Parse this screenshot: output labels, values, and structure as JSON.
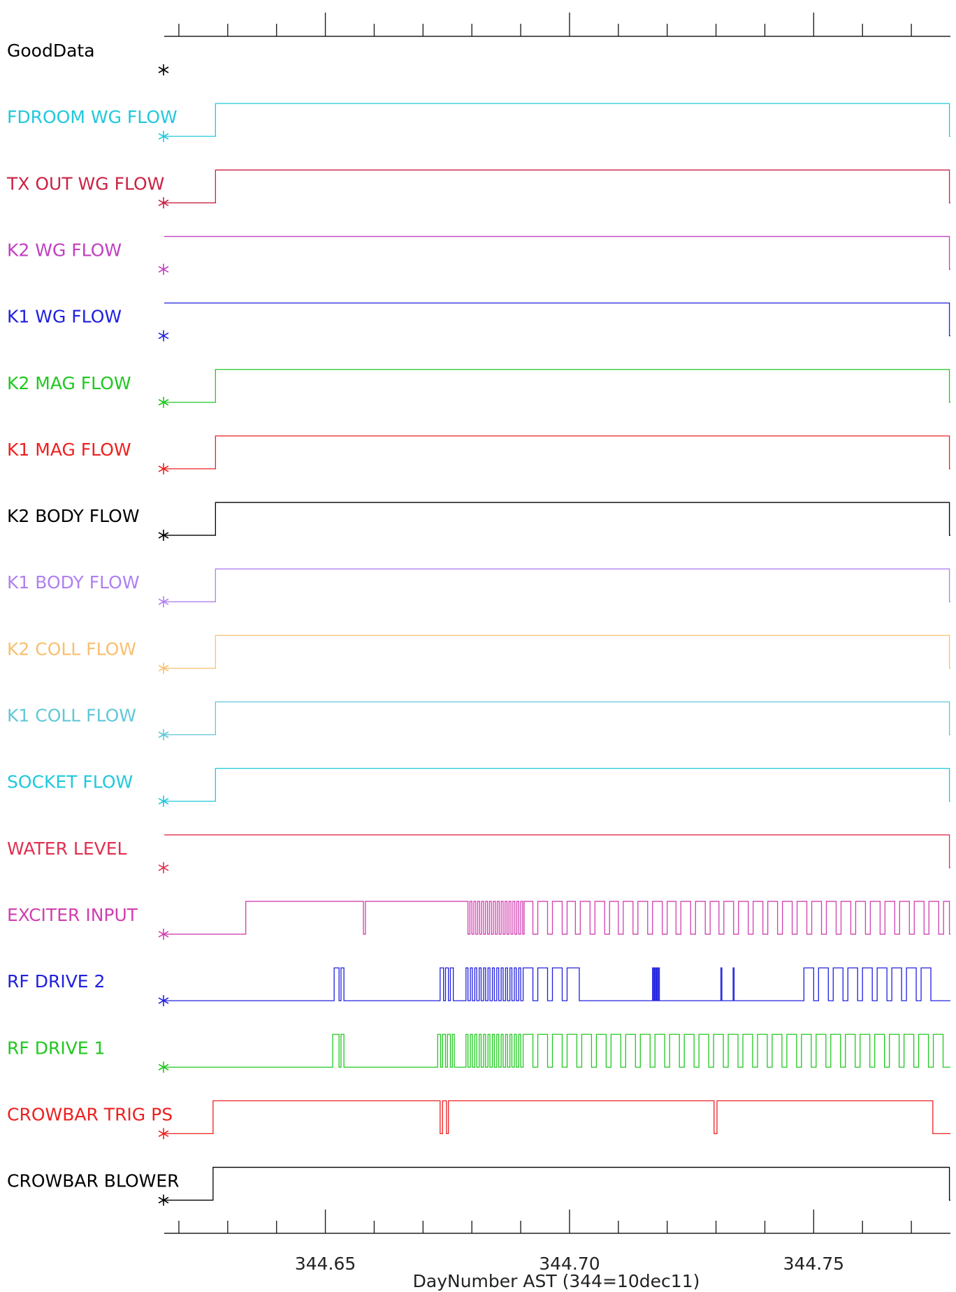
{
  "chart_data": {
    "type": "line",
    "subtype": "digital-status-traces",
    "xlabel": "DayNumber AST (344=10dec11)",
    "xlim": [
      344.617,
      344.778
    ],
    "x_major_ticks": [
      "344.65",
      "344.70",
      "344.75"
    ],
    "x_major_values": [
      344.65,
      344.7,
      344.75
    ],
    "x_minor_step": 0.01,
    "series": [
      {
        "name": "GoodData",
        "color": "#000000",
        "segments": []
      },
      {
        "name": "FDROOM WG FLOW",
        "color": "#22c8dc",
        "segments": [
          [
            344.6275,
            344.7778
          ]
        ]
      },
      {
        "name": "TX OUT WG FLOW",
        "color": "#cc2244",
        "segments": [
          [
            344.6275,
            344.7778
          ]
        ]
      },
      {
        "name": "K2 WG FLOW",
        "color": "#c040c0",
        "segments": [
          [
            344.617,
            344.7778
          ]
        ]
      },
      {
        "name": "K1 WG FLOW",
        "color": "#2020e0",
        "segments": [
          [
            344.617,
            344.7778
          ]
        ]
      },
      {
        "name": "K2 MAG FLOW",
        "color": "#20c820",
        "segments": [
          [
            344.6275,
            344.7778
          ]
        ]
      },
      {
        "name": "K1 MAG FLOW",
        "color": "#ee2020",
        "segments": [
          [
            344.6275,
            344.7778
          ]
        ]
      },
      {
        "name": "K2 BODY FLOW",
        "color": "#000000",
        "segments": [
          [
            344.6275,
            344.7778
          ]
        ]
      },
      {
        "name": "K1 BODY FLOW",
        "color": "#b080f0",
        "segments": [
          [
            344.6275,
            344.7778
          ]
        ]
      },
      {
        "name": "K2 COLL FLOW",
        "color": "#f8c070",
        "segments": [
          [
            344.6275,
            344.7778
          ]
        ]
      },
      {
        "name": "K1 COLL FLOW",
        "color": "#60c8d8",
        "segments": [
          [
            344.6275,
            344.7778
          ]
        ]
      },
      {
        "name": "SOCKET FLOW",
        "color": "#20c8dc",
        "segments": [
          [
            344.6275,
            344.7778
          ]
        ]
      },
      {
        "name": "WATER LEVEL",
        "color": "#e03050",
        "segments": [
          [
            344.617,
            344.7778
          ]
        ]
      },
      {
        "name": "EXCITER INPUT",
        "color": "#d040b0",
        "segments": [
          [
            344.6337,
            344.6578
          ],
          [
            344.6582,
            344.6792
          ],
          [
            344.6796,
            344.68
          ],
          [
            344.6804,
            344.6808
          ],
          [
            344.6812,
            344.6816
          ],
          [
            344.682,
            344.6824
          ],
          [
            344.6828,
            344.6832
          ],
          [
            344.6836,
            344.684
          ],
          [
            344.6844,
            344.6848
          ],
          [
            344.6852,
            344.6856
          ],
          [
            344.686,
            344.6864
          ],
          [
            344.6868,
            344.6872
          ],
          [
            344.6876,
            344.688
          ],
          [
            344.6884,
            344.6888
          ],
          [
            344.6892,
            344.6896
          ],
          [
            344.69,
            344.6904
          ],
          [
            344.6907,
            344.6925
          ],
          [
            344.6935,
            344.6955
          ],
          [
            344.6965,
            344.6985
          ],
          [
            344.6995,
            344.7012
          ],
          [
            344.7022,
            344.7042
          ],
          [
            344.7052,
            344.7072
          ],
          [
            344.7082,
            344.71
          ],
          [
            344.711,
            344.713
          ],
          [
            344.714,
            344.716
          ],
          [
            344.717,
            344.719
          ],
          [
            344.72,
            344.7218
          ],
          [
            344.7228,
            344.7248
          ],
          [
            344.7258,
            344.7278
          ],
          [
            344.7288,
            344.7306
          ],
          [
            344.7316,
            344.7336
          ],
          [
            344.7346,
            344.7366
          ],
          [
            344.7376,
            344.7396
          ],
          [
            344.7406,
            344.7426
          ],
          [
            344.7436,
            344.7456
          ],
          [
            344.7466,
            344.7486
          ],
          [
            344.7496,
            344.7516
          ],
          [
            344.7526,
            344.7546
          ],
          [
            344.7556,
            344.7576
          ],
          [
            344.7586,
            344.7606
          ],
          [
            344.7616,
            344.7636
          ],
          [
            344.7646,
            344.7666
          ],
          [
            344.7676,
            344.7696
          ],
          [
            344.7706,
            344.7726
          ],
          [
            344.7736,
            344.7756
          ],
          [
            344.7766,
            344.7778
          ]
        ]
      },
      {
        "name": "RF DRIVE 2",
        "color": "#2020e0",
        "segments": [
          [
            344.6518,
            344.6528
          ],
          [
            344.6532,
            344.6538
          ],
          [
            344.6735,
            344.6742
          ],
          [
            344.6746,
            344.6752
          ],
          [
            344.6756,
            344.6762
          ],
          [
            344.6788,
            344.6792
          ],
          [
            344.6797,
            344.6801
          ],
          [
            344.6806,
            344.681
          ],
          [
            344.6815,
            344.6819
          ],
          [
            344.6824,
            344.6828
          ],
          [
            344.6833,
            344.6837
          ],
          [
            344.6842,
            344.6846
          ],
          [
            344.6851,
            344.6855
          ],
          [
            344.686,
            344.6864
          ],
          [
            344.6869,
            344.6873
          ],
          [
            344.6878,
            344.6882
          ],
          [
            344.6887,
            344.6891
          ],
          [
            344.6896,
            344.69
          ],
          [
            344.6905,
            344.6925
          ],
          [
            344.6935,
            344.6955
          ],
          [
            344.6965,
            344.6985
          ],
          [
            344.6995,
            344.702
          ],
          [
            344.717,
            344.7172
          ],
          [
            344.7174,
            344.7176
          ],
          [
            344.7178,
            344.718
          ],
          [
            344.7182,
            344.7184
          ],
          [
            344.731,
            344.7312
          ],
          [
            344.7335,
            344.7337
          ],
          [
            344.748,
            344.75
          ],
          [
            344.751,
            344.753
          ],
          [
            344.754,
            344.756
          ],
          [
            344.757,
            344.759
          ],
          [
            344.76,
            344.762
          ],
          [
            344.763,
            344.765
          ],
          [
            344.766,
            344.768
          ],
          [
            344.769,
            344.771
          ],
          [
            344.772,
            344.774
          ]
        ]
      },
      {
        "name": "RF DRIVE 1",
        "color": "#20c820",
        "segments": [
          [
            344.6515,
            344.6528
          ],
          [
            344.6532,
            344.6538
          ],
          [
            344.673,
            344.6736
          ],
          [
            344.674,
            344.6746
          ],
          [
            344.675,
            344.6756
          ],
          [
            344.676,
            344.6764
          ],
          [
            344.6788,
            344.6792
          ],
          [
            344.6797,
            344.6801
          ],
          [
            344.6806,
            344.681
          ],
          [
            344.6815,
            344.6819
          ],
          [
            344.6824,
            344.6828
          ],
          [
            344.6833,
            344.6837
          ],
          [
            344.6842,
            344.6846
          ],
          [
            344.6851,
            344.6855
          ],
          [
            344.686,
            344.6864
          ],
          [
            344.6869,
            344.6873
          ],
          [
            344.6878,
            344.6882
          ],
          [
            344.6887,
            344.6891
          ],
          [
            344.6896,
            344.69
          ],
          [
            344.6905,
            344.6925
          ],
          [
            344.6935,
            344.6955
          ],
          [
            344.6965,
            344.6985
          ],
          [
            344.6995,
            344.7015
          ],
          [
            344.7025,
            344.7045
          ],
          [
            344.7055,
            344.7075
          ],
          [
            344.7085,
            344.7105
          ],
          [
            344.7115,
            344.7135
          ],
          [
            344.7145,
            344.7165
          ],
          [
            344.7175,
            344.7195
          ],
          [
            344.7205,
            344.7225
          ],
          [
            344.7235,
            344.7255
          ],
          [
            344.7265,
            344.7285
          ],
          [
            344.7295,
            344.7315
          ],
          [
            344.7325,
            344.7345
          ],
          [
            344.7355,
            344.7375
          ],
          [
            344.7385,
            344.7405
          ],
          [
            344.7415,
            344.7435
          ],
          [
            344.7445,
            344.7465
          ],
          [
            344.7475,
            344.7495
          ],
          [
            344.7505,
            344.7525
          ],
          [
            344.7535,
            344.7555
          ],
          [
            344.7565,
            344.7585
          ],
          [
            344.7595,
            344.7615
          ],
          [
            344.7625,
            344.7645
          ],
          [
            344.7655,
            344.7675
          ],
          [
            344.7685,
            344.7705
          ],
          [
            344.7715,
            344.7735
          ],
          [
            344.7745,
            344.7765
          ]
        ]
      },
      {
        "name": "CROWBAR TRIG PS",
        "color": "#ee2020",
        "segments": [
          [
            344.627,
            344.6735
          ],
          [
            344.674,
            344.6748
          ],
          [
            344.6752,
            344.7296
          ],
          [
            344.7302,
            344.7744
          ]
        ]
      },
      {
        "name": "CROWBAR BLOWER",
        "color": "#000000",
        "segments": [
          [
            344.627,
            344.7778
          ]
        ]
      }
    ]
  }
}
